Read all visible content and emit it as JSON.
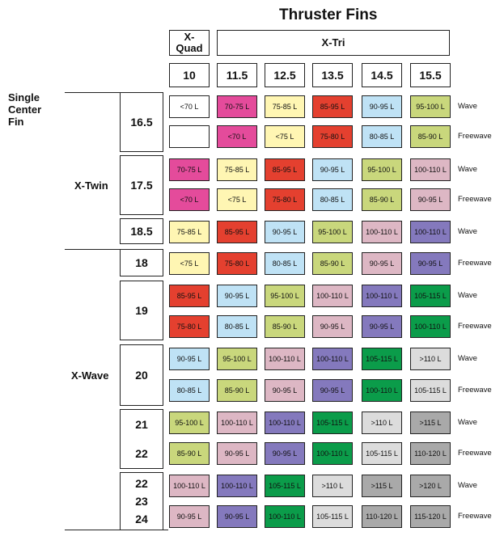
{
  "title": "Thruster Fins",
  "fin_groups": {
    "quad": "X-\nQuad",
    "tri": "X-Tri"
  },
  "fin_sizes": [
    "10",
    "11.5",
    "12.5",
    "13.5",
    "14.5",
    "15.5"
  ],
  "row_groups": {
    "single": "Single\nCenter\nFin",
    "twin": "X-Twin",
    "wave": "X-Wave"
  },
  "surf_sizes": [
    {
      "label": [
        "16.5"
      ]
    },
    {
      "label": [
        "17.5"
      ]
    },
    {
      "label": [
        "18.5"
      ]
    },
    {
      "label": [
        "18"
      ]
    },
    {
      "label": [
        "19"
      ]
    },
    {
      "label": [
        "20"
      ]
    },
    {
      "label": [
        "21",
        "22"
      ]
    },
    {
      "label": [
        "22",
        "23",
        "24"
      ]
    }
  ],
  "row_labels": [
    "Wave",
    "Freewave",
    "Wave",
    "Freewave",
    "Wave",
    "Freewave",
    "Wave",
    "Freewave",
    "Wave",
    "Freewave",
    "Wave",
    "Freewave",
    "Wave",
    "Freewave"
  ],
  "colors": {
    "white": "#ffffff",
    "pink": "#e44b9b",
    "cream": "#fff6b3",
    "red": "#e4402f",
    "blue": "#bfe2f5",
    "lime": "#c9d77c",
    "mauve": "#ddb7c4",
    "purple": "#8479bd",
    "green": "#0b9c4a",
    "lgray": "#dcdcdc",
    "mgray": "#a9a9a9"
  },
  "rows": [
    [
      {
        "t": "<70 L",
        "c": "white"
      },
      {
        "t": "70-75 L",
        "c": "pink"
      },
      {
        "t": "75-85 L",
        "c": "cream"
      },
      {
        "t": "85-95 L",
        "c": "red"
      },
      {
        "t": "90-95 L",
        "c": "blue"
      },
      {
        "t": "95-100 L",
        "c": "lime"
      }
    ],
    [
      {
        "t": "",
        "c": "white"
      },
      {
        "t": "<70 L",
        "c": "pink"
      },
      {
        "t": "<75 L",
        "c": "cream"
      },
      {
        "t": "75-80 L",
        "c": "red"
      },
      {
        "t": "80-85 L",
        "c": "blue"
      },
      {
        "t": "85-90 L",
        "c": "lime"
      }
    ],
    [
      {
        "t": "70-75 L",
        "c": "pink"
      },
      {
        "t": "75-85 L",
        "c": "cream"
      },
      {
        "t": "85-95 L",
        "c": "red"
      },
      {
        "t": "90-95 L",
        "c": "blue"
      },
      {
        "t": "95-100 L",
        "c": "lime"
      },
      {
        "t": "100-110 L",
        "c": "mauve"
      }
    ],
    [
      {
        "t": "<70 L",
        "c": "pink"
      },
      {
        "t": "<75 L",
        "c": "cream"
      },
      {
        "t": "75-80 L",
        "c": "red"
      },
      {
        "t": "80-85 L",
        "c": "blue"
      },
      {
        "t": "85-90 L",
        "c": "lime"
      },
      {
        "t": "90-95 L",
        "c": "mauve"
      }
    ],
    [
      {
        "t": "75-85 L",
        "c": "cream"
      },
      {
        "t": "85-95 L",
        "c": "red"
      },
      {
        "t": "90-95 L",
        "c": "blue"
      },
      {
        "t": "95-100 L",
        "c": "lime"
      },
      {
        "t": "100-110 L",
        "c": "mauve"
      },
      {
        "t": "100-110 L",
        "c": "purple"
      }
    ],
    [
      {
        "t": "<75 L",
        "c": "cream"
      },
      {
        "t": "75-80 L",
        "c": "red"
      },
      {
        "t": "80-85 L",
        "c": "blue"
      },
      {
        "t": "85-90 L",
        "c": "lime"
      },
      {
        "t": "90-95 L",
        "c": "mauve"
      },
      {
        "t": "90-95 L",
        "c": "purple"
      }
    ],
    [
      {
        "t": "85-95 L",
        "c": "red"
      },
      {
        "t": "90-95 L",
        "c": "blue"
      },
      {
        "t": "95-100 L",
        "c": "lime"
      },
      {
        "t": "100-110 L",
        "c": "mauve"
      },
      {
        "t": "100-110 L",
        "c": "purple"
      },
      {
        "t": "105-115 L",
        "c": "green"
      }
    ],
    [
      {
        "t": "75-80 L",
        "c": "red"
      },
      {
        "t": "80-85 L",
        "c": "blue"
      },
      {
        "t": "85-90 L",
        "c": "lime"
      },
      {
        "t": "90-95 L",
        "c": "mauve"
      },
      {
        "t": "90-95 L",
        "c": "purple"
      },
      {
        "t": "100-110 L",
        "c": "green"
      }
    ],
    [
      {
        "t": "90-95 L",
        "c": "blue"
      },
      {
        "t": "95-100 L",
        "c": "lime"
      },
      {
        "t": "100-110 L",
        "c": "mauve"
      },
      {
        "t": "100-110 L",
        "c": "purple"
      },
      {
        "t": "105-115 L",
        "c": "green"
      },
      {
        "t": ">110 L",
        "c": "lgray"
      }
    ],
    [
      {
        "t": "80-85 L",
        "c": "blue"
      },
      {
        "t": "85-90 L",
        "c": "lime"
      },
      {
        "t": "90-95 L",
        "c": "mauve"
      },
      {
        "t": "90-95 L",
        "c": "purple"
      },
      {
        "t": "100-110 L",
        "c": "green"
      },
      {
        "t": "105-115 L",
        "c": "lgray"
      }
    ],
    [
      {
        "t": "95-100 L",
        "c": "lime"
      },
      {
        "t": "100-110 L",
        "c": "mauve"
      },
      {
        "t": "100-110 L",
        "c": "purple"
      },
      {
        "t": "105-115 L",
        "c": "green"
      },
      {
        "t": ">110 L",
        "c": "lgray"
      },
      {
        "t": ">115 L",
        "c": "mgray"
      }
    ],
    [
      {
        "t": "85-90 L",
        "c": "lime"
      },
      {
        "t": "90-95 L",
        "c": "mauve"
      },
      {
        "t": "90-95 L",
        "c": "purple"
      },
      {
        "t": "100-110 L",
        "c": "green"
      },
      {
        "t": "105-115 L",
        "c": "lgray"
      },
      {
        "t": "110-120 L",
        "c": "mgray"
      }
    ],
    [
      {
        "t": "100-110 L",
        "c": "mauve"
      },
      {
        "t": "100-110 L",
        "c": "purple"
      },
      {
        "t": "105-115 L",
        "c": "green"
      },
      {
        "t": ">110 L",
        "c": "lgray"
      },
      {
        "t": ">115 L",
        "c": "mgray"
      },
      {
        "t": ">120 L",
        "c": "mgray"
      }
    ],
    [
      {
        "t": "90-95 L",
        "c": "mauve"
      },
      {
        "t": "90-95 L",
        "c": "purple"
      },
      {
        "t": "100-110 L",
        "c": "green"
      },
      {
        "t": "105-115 L",
        "c": "lgray"
      },
      {
        "t": "110-120 L",
        "c": "mgray"
      },
      {
        "t": "115-120 L",
        "c": "mgray"
      }
    ]
  ]
}
